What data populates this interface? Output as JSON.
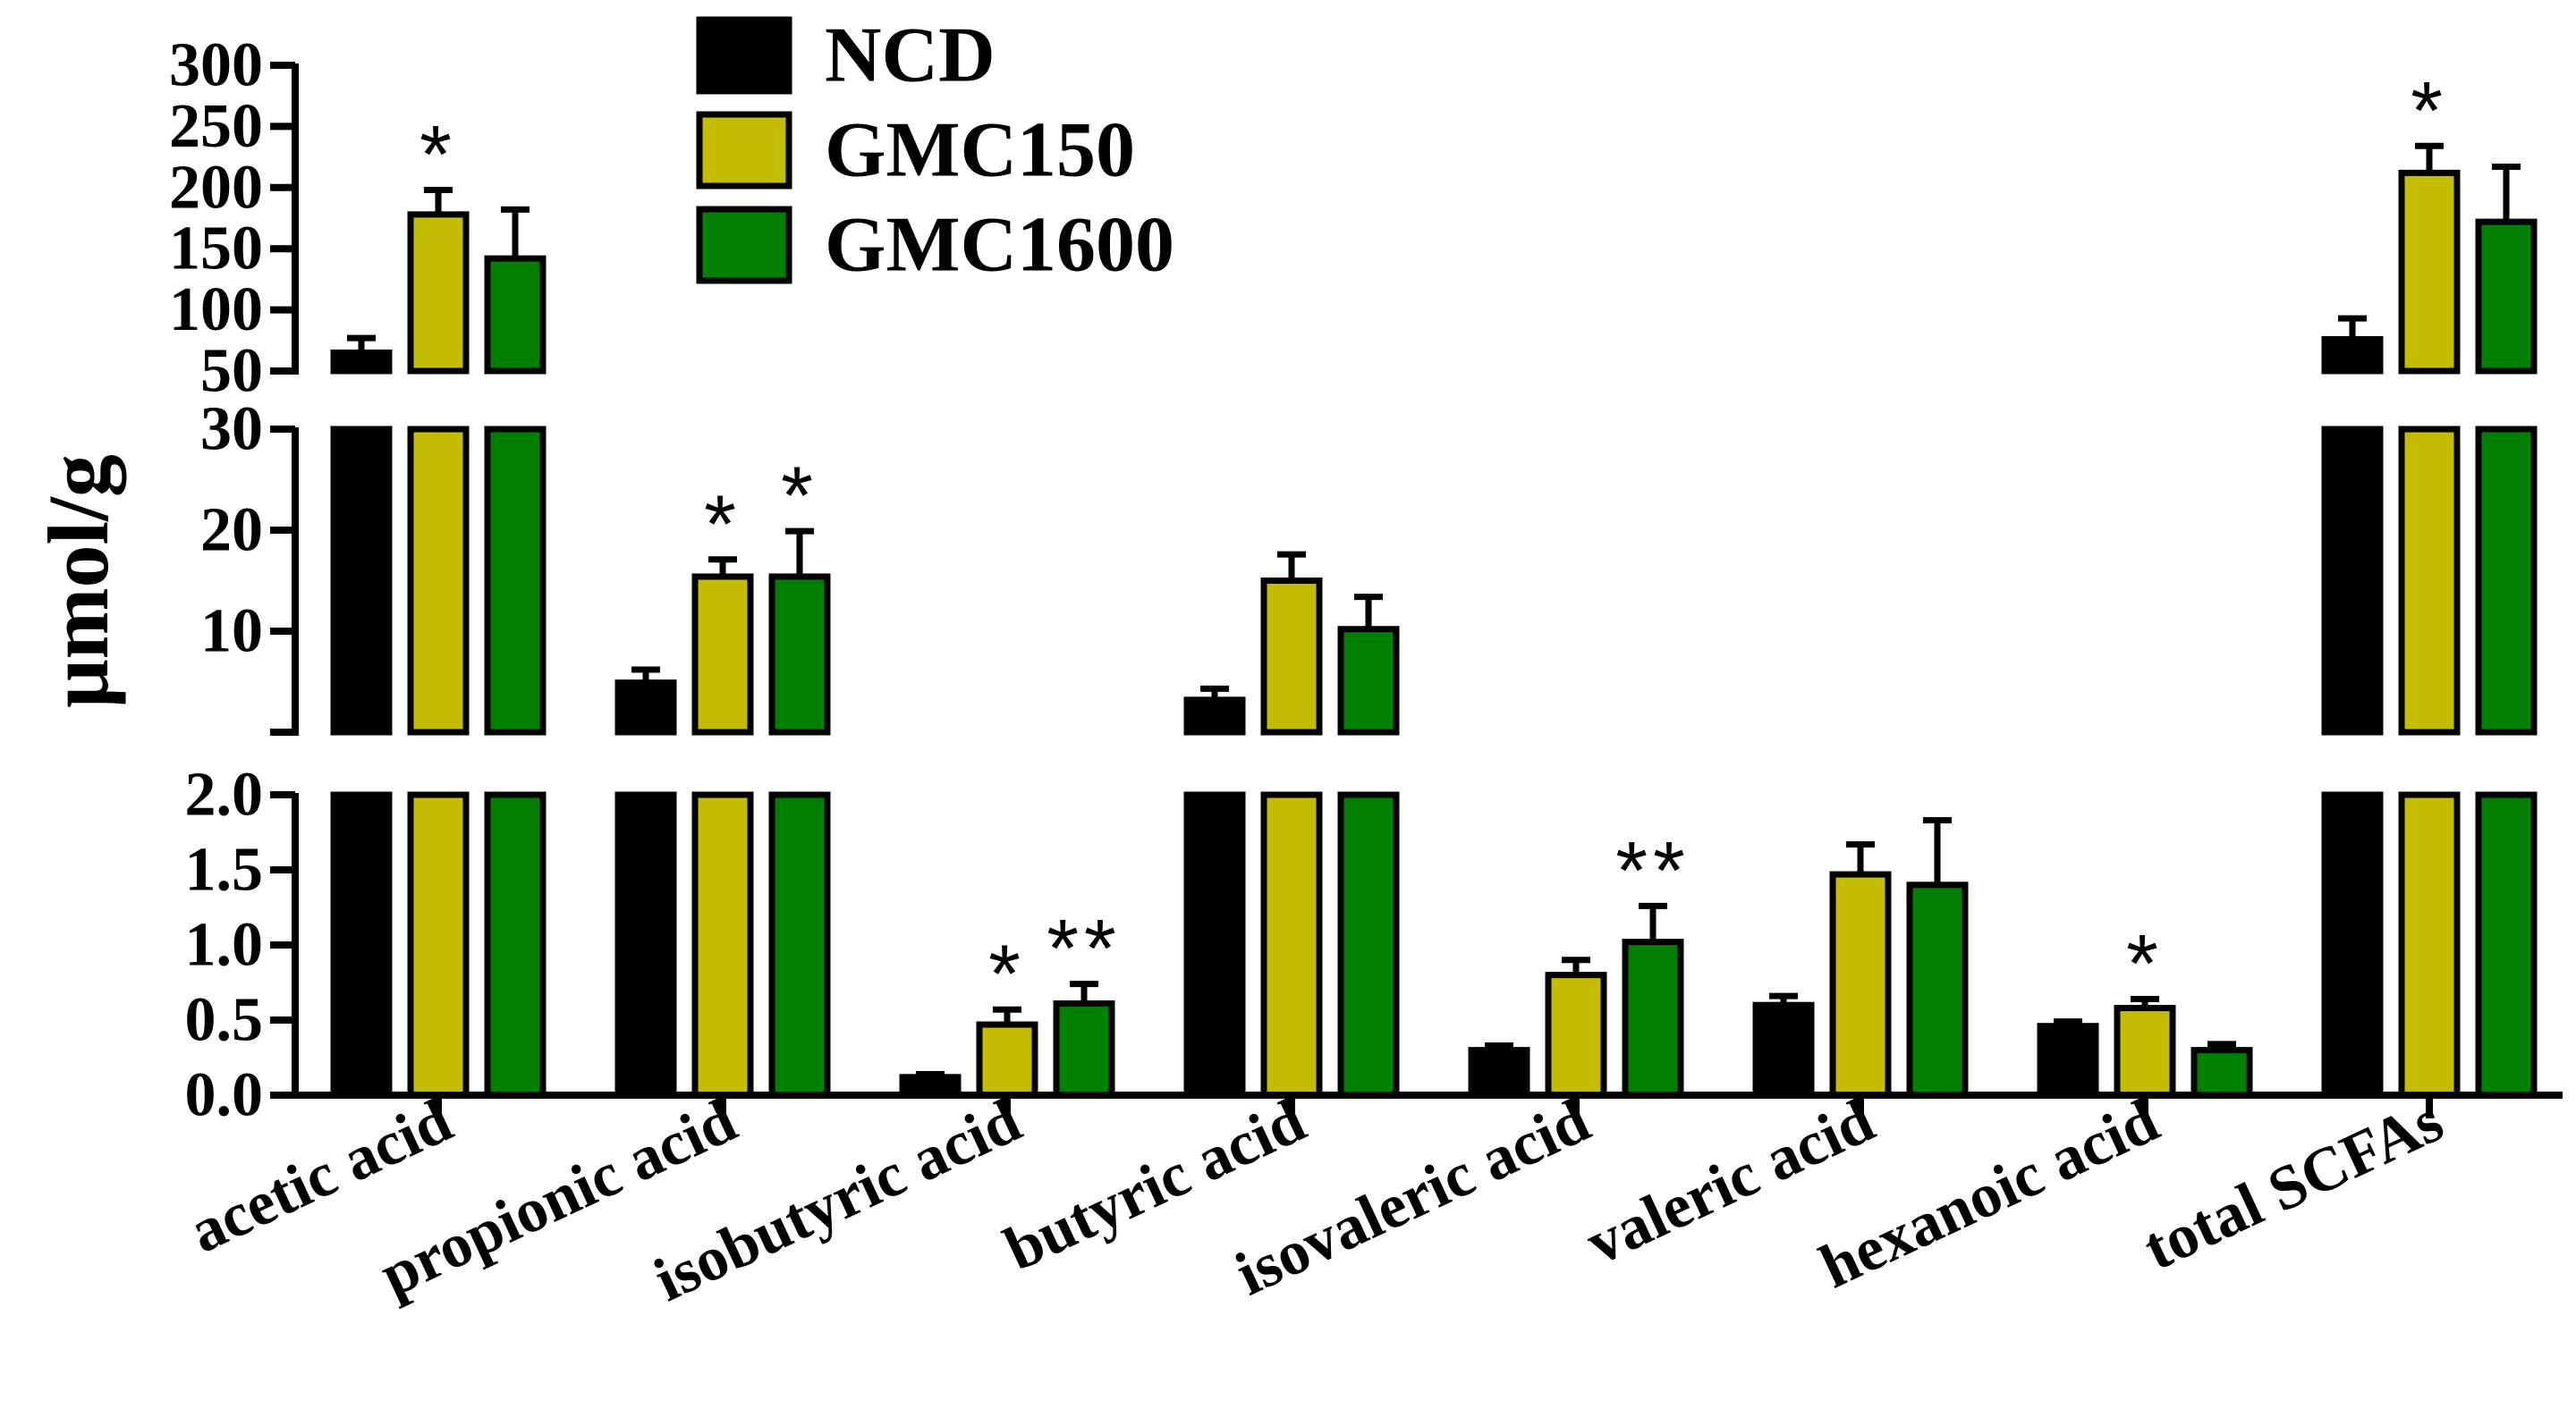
{
  "chart_data": {
    "type": "bar",
    "title": "",
    "xlabel": "",
    "ylabel": "μmol/g",
    "categories": [
      "acetic acid",
      "propionic acid",
      "isobutyric acid",
      "butyric acid",
      "isovaleric acid",
      "valeric acid",
      "hexanoic acid",
      "total SCFAs"
    ],
    "series": [
      {
        "name": "NCD",
        "color": "#000000",
        "values": [
          65,
          4.9,
          0.12,
          3.2,
          0.3,
          0.6,
          0.46,
          76
        ],
        "errors": [
          12,
          1.3,
          0.02,
          1.1,
          0.03,
          0.06,
          0.03,
          17
        ]
      },
      {
        "name": "GMC150",
        "color": "#c4bc00",
        "values": [
          178,
          15.4,
          0.47,
          15,
          0.8,
          1.47,
          0.58,
          212
        ],
        "errors": [
          20,
          1.7,
          0.1,
          2.6,
          0.1,
          0.2,
          0.06,
          22
        ]
      },
      {
        "name": "GMC1600",
        "color": "#008000",
        "values": [
          142,
          15.4,
          0.61,
          10.2,
          1.02,
          1.4,
          0.3,
          172
        ],
        "errors": [
          40,
          4.5,
          0.13,
          3.2,
          0.24,
          0.43,
          0.04,
          45
        ]
      }
    ],
    "significance": [
      {
        "category": 0,
        "series": 1,
        "label": "*"
      },
      {
        "category": 1,
        "series": 1,
        "label": "*"
      },
      {
        "category": 1,
        "series": 2,
        "label": "*"
      },
      {
        "category": 2,
        "series": 1,
        "label": "*"
      },
      {
        "category": 2,
        "series": 2,
        "label": "**"
      },
      {
        "category": 4,
        "series": 2,
        "label": "**"
      },
      {
        "category": 6,
        "series": 1,
        "label": "*"
      },
      {
        "category": 7,
        "series": 1,
        "label": "*"
      }
    ],
    "y_segments": [
      {
        "name": "low",
        "ylim": [
          0,
          2
        ],
        "ticks": [
          "0.0",
          "0.5",
          "1.0",
          "1.5",
          "2.0"
        ],
        "tick_values": [
          0,
          0.5,
          1,
          1.5,
          2
        ]
      },
      {
        "name": "mid",
        "ylim": [
          0,
          30
        ],
        "ticks": [
          "10",
          "20",
          "30"
        ],
        "tick_values": [
          10,
          20,
          30
        ]
      },
      {
        "name": "high",
        "ylim": [
          50,
          300
        ],
        "ticks": [
          "50",
          "100",
          "150",
          "200",
          "250",
          "300"
        ],
        "tick_values": [
          50,
          100,
          150,
          200,
          250,
          300
        ]
      }
    ],
    "legend_position": "top-center"
  }
}
